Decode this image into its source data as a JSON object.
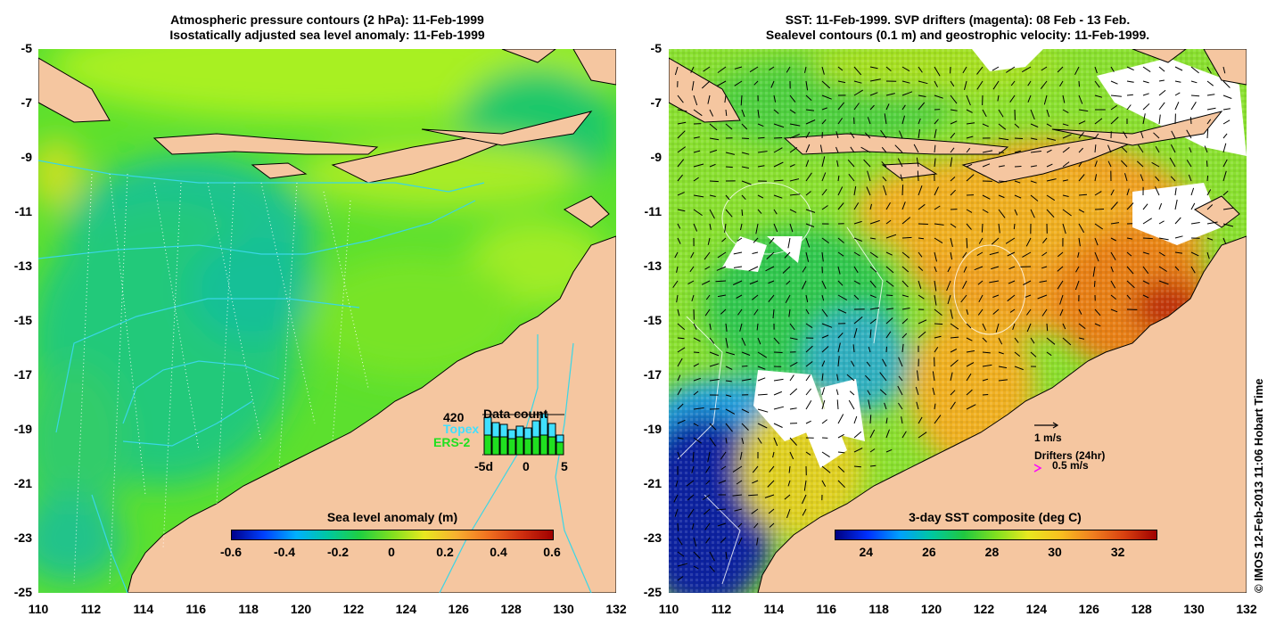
{
  "left_panel": {
    "title_line1": "Atmospheric pressure contours (2 hPa): 11-Feb-1999",
    "title_line2": "Isostatically adjusted sea level anomaly: 11-Feb-1999",
    "colorbar_title": "Sea level anomaly (m)",
    "colorbar_ticks": [
      "-0.6",
      "-0.4",
      "-0.2",
      "0",
      "0.2",
      "0.4",
      "0.6"
    ],
    "inset": {
      "count": "420",
      "title": "Data count",
      "legend_topex": "Topex",
      "legend_ers": "ERS-2",
      "x_ticks": [
        "-5d",
        "0",
        "5"
      ],
      "topex_color": "#40e0ff",
      "ers_color": "#20e020"
    }
  },
  "right_panel": {
    "title_line1": "SST: 11-Feb-1999. SVP drifters (magenta): 08 Feb - 13 Feb.",
    "title_line2": "Sealevel contours (0.1 m) and geostrophic velocity: 11-Feb-1999.",
    "colorbar_title": "3-day SST composite (deg C)",
    "colorbar_ticks": [
      "24",
      "26",
      "28",
      "30",
      "32"
    ],
    "scale_label": "1 m/s",
    "drifters_label": "Drifters (24hr)",
    "drifter_speed": "0.5 m/s"
  },
  "axes": {
    "y_ticks": [
      "-5",
      "-7",
      "-9",
      "-11",
      "-13",
      "-15",
      "-17",
      "-19",
      "-21",
      "-23",
      "-25"
    ],
    "x_ticks": [
      "110",
      "112",
      "114",
      "116",
      "118",
      "120",
      "122",
      "124",
      "126",
      "128",
      "130",
      "132"
    ]
  },
  "credit": "© IMOS 12-Feb-2013 11:06 Hobart Time",
  "colors": {
    "land": "#f5c6a0",
    "ocean_green": "#3ed23e",
    "sst_orange": "#f08a1a"
  }
}
